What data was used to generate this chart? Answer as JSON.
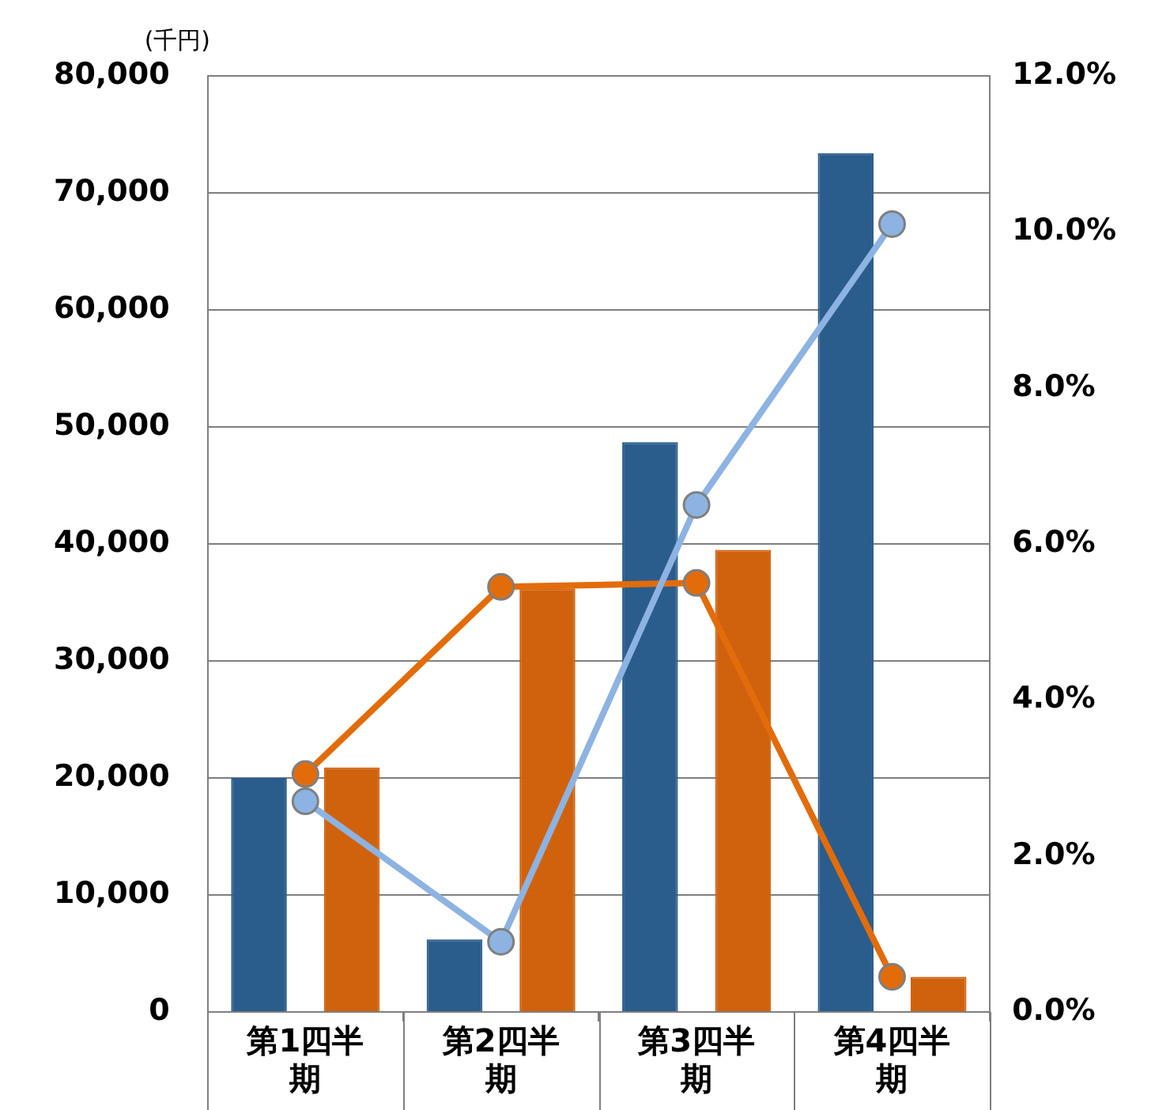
{
  "chart_data": {
    "type": "bar",
    "ylabel": "(千円)",
    "categories": [
      "第1四半期",
      "第2四半期",
      "第3四半期",
      "第4四半期"
    ],
    "series": [
      {
        "axis": "y",
        "color": "#2b5d8c",
        "values": [
          20000,
          6200,
          48700,
          73400
        ]
      },
      {
        "axis": "y",
        "color": "#d0620e",
        "values": [
          20900,
          36200,
          39500,
          3000
        ]
      },
      {
        "type": "line",
        "axis": "y2",
        "color": "#8db3e2",
        "values": [
          2.7,
          0.9,
          6.5,
          10.1
        ]
      },
      {
        "type": "line",
        "axis": "y2",
        "color": "#e36c0a",
        "values": [
          3.05,
          5.45,
          5.5,
          0.45
        ]
      }
    ],
    "ylim": [
      0,
      80000
    ],
    "yticks": [
      0,
      {
        "value": 10000,
        "label": "10,000"
      },
      {
        "value": 20000,
        "label": "20,000"
      },
      {
        "value": 30000,
        "label": "30,000"
      },
      {
        "value": 40000,
        "label": "40,000"
      },
      {
        "value": 50000,
        "label": "50,000"
      },
      {
        "value": 60000,
        "label": "60,000"
      },
      {
        "value": 70000,
        "label": "70,000"
      },
      {
        "value": 80000,
        "label": "80,000"
      }
    ],
    "y2lim": [
      0,
      12
    ],
    "y2ticks": [
      {
        "value": 0,
        "label": "0.0%"
      },
      {
        "value": 2,
        "label": "2.0%"
      },
      {
        "value": 4,
        "label": "4.0%"
      },
      {
        "value": 6,
        "label": "6.0%"
      },
      {
        "value": 8,
        "label": "8.0%"
      },
      {
        "value": 10,
        "label": "10.0%"
      },
      {
        "value": 12,
        "label": "12.0%"
      }
    ],
    "grid": "y",
    "legend": false,
    "marker": "circle",
    "line_style": "solid"
  }
}
